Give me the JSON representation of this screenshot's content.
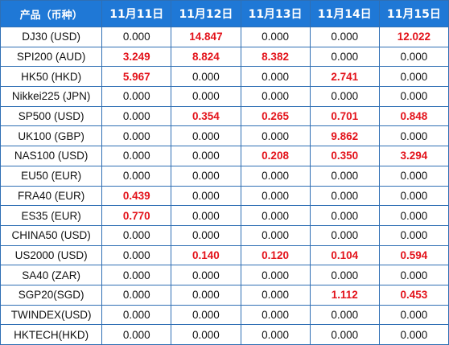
{
  "table": {
    "headers": [
      "产品（币种）",
      "11月11日",
      "11月12日",
      "11月13日",
      "11月14日",
      "11月15日"
    ],
    "highlight_color": "#e3121a",
    "header_background": "#1f78d6",
    "rows": [
      {
        "product": "DJ30 (USD)",
        "values": [
          "0.000",
          "14.847",
          "0.000",
          "0.000",
          "12.022"
        ]
      },
      {
        "product": "SPI200 (AUD)",
        "values": [
          "3.249",
          "8.824",
          "8.382",
          "0.000",
          "0.000"
        ]
      },
      {
        "product": "HK50 (HKD)",
        "values": [
          "5.967",
          "0.000",
          "0.000",
          "2.741",
          "0.000"
        ]
      },
      {
        "product": "Nikkei225 (JPN)",
        "values": [
          "0.000",
          "0.000",
          "0.000",
          "0.000",
          "0.000"
        ]
      },
      {
        "product": "SP500 (USD)",
        "values": [
          "0.000",
          "0.354",
          "0.265",
          "0.701",
          "0.848"
        ]
      },
      {
        "product": "UK100 (GBP)",
        "values": [
          "0.000",
          "0.000",
          "0.000",
          "9.862",
          "0.000"
        ]
      },
      {
        "product": "NAS100 (USD)",
        "values": [
          "0.000",
          "0.000",
          "0.208",
          "0.350",
          "3.294"
        ]
      },
      {
        "product": "EU50 (EUR)",
        "values": [
          "0.000",
          "0.000",
          "0.000",
          "0.000",
          "0.000"
        ]
      },
      {
        "product": "FRA40 (EUR)",
        "values": [
          "0.439",
          "0.000",
          "0.000",
          "0.000",
          "0.000"
        ]
      },
      {
        "product": "ES35 (EUR)",
        "values": [
          "0.770",
          "0.000",
          "0.000",
          "0.000",
          "0.000"
        ]
      },
      {
        "product": "CHINA50 (USD)",
        "values": [
          "0.000",
          "0.000",
          "0.000",
          "0.000",
          "0.000"
        ]
      },
      {
        "product": "US2000 (USD)",
        "values": [
          "0.000",
          "0.140",
          "0.120",
          "0.104",
          "0.594"
        ]
      },
      {
        "product": "SA40 (ZAR)",
        "values": [
          "0.000",
          "0.000",
          "0.000",
          "0.000",
          "0.000"
        ]
      },
      {
        "product": "SGP20(SGD)",
        "values": [
          "0.000",
          "0.000",
          "0.000",
          "1.112",
          "0.453"
        ]
      },
      {
        "product": "TWINDEX(USD)",
        "values": [
          "0.000",
          "0.000",
          "0.000",
          "0.000",
          "0.000"
        ]
      },
      {
        "product": "HKTECH(HKD)",
        "values": [
          "0.000",
          "0.000",
          "0.000",
          "0.000",
          "0.000"
        ]
      }
    ]
  }
}
